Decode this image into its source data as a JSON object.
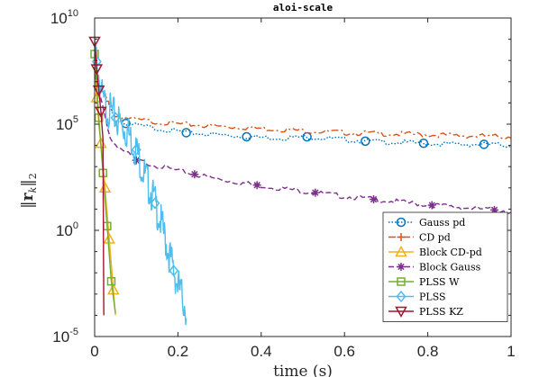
{
  "chart_data": {
    "type": "line",
    "title": "aloi-scale",
    "xlabel": "time (s)",
    "ylabel": "||r_k||_2",
    "xlim": [
      0,
      1
    ],
    "ylim_log10": [
      -5,
      10
    ],
    "yscale": "log",
    "grid": false,
    "legend_position": "lower-right",
    "x_ticks": [
      "0",
      "0.2",
      "0.4",
      "0.6",
      "0.8",
      "1"
    ],
    "y_ticks": [
      {
        "base": "10",
        "exp": "-5"
      },
      {
        "base": "10",
        "exp": "0"
      },
      {
        "base": "10",
        "exp": "5"
      },
      {
        "base": "10",
        "exp": "10"
      }
    ],
    "series": [
      {
        "name": "Gauss pd",
        "color": "#0072BD",
        "style": "dotted",
        "marker": "circle",
        "points": [
          [
            0.0,
            7.3
          ],
          [
            0.05,
            5.2
          ],
          [
            0.08,
            5.0
          ],
          [
            0.15,
            4.8
          ],
          [
            0.22,
            4.6
          ],
          [
            0.3,
            4.5
          ],
          [
            0.37,
            4.4
          ],
          [
            0.45,
            4.35
          ],
          [
            0.51,
            4.4
          ],
          [
            0.58,
            4.3
          ],
          [
            0.65,
            4.2
          ],
          [
            0.72,
            4.15
          ],
          [
            0.79,
            4.1
          ],
          [
            0.86,
            4.05
          ],
          [
            0.94,
            4.05
          ],
          [
            1.0,
            4.0
          ]
        ],
        "markers_x": [
          0.075,
          0.22,
          0.365,
          0.51,
          0.65,
          0.79,
          0.935
        ]
      },
      {
        "name": "CD pd",
        "color": "#D95319",
        "style": "dashdot",
        "marker": "plus",
        "points": [
          [
            0.0,
            7.2
          ],
          [
            0.05,
            5.4
          ],
          [
            0.1,
            5.2
          ],
          [
            0.2,
            5.0
          ],
          [
            0.3,
            4.9
          ],
          [
            0.4,
            4.8
          ],
          [
            0.5,
            4.7
          ],
          [
            0.6,
            4.6
          ],
          [
            0.7,
            4.55
          ],
          [
            0.8,
            4.5
          ],
          [
            0.9,
            4.45
          ],
          [
            1.0,
            4.4
          ]
        ],
        "markers_x": []
      },
      {
        "name": "Block CD-pd",
        "color": "#EDB120",
        "style": "solid",
        "marker": "triangle",
        "points": [
          [
            0.0,
            7.5
          ],
          [
            0.01,
            5.0
          ],
          [
            0.02,
            3.2
          ],
          [
            0.03,
            0.8
          ],
          [
            0.04,
            -1.6
          ],
          [
            0.05,
            -4.0
          ]
        ],
        "markers_x": [
          0.005,
          0.015,
          0.025,
          0.035,
          0.045
        ]
      },
      {
        "name": "Block Gauss",
        "color": "#7E2F8E",
        "style": "dashed",
        "marker": "asterisk",
        "points": [
          [
            0.0,
            7.3
          ],
          [
            0.04,
            4.2
          ],
          [
            0.1,
            3.3
          ],
          [
            0.2,
            2.8
          ],
          [
            0.3,
            2.4
          ],
          [
            0.4,
            2.1
          ],
          [
            0.5,
            1.85
          ],
          [
            0.6,
            1.6
          ],
          [
            0.7,
            1.4
          ],
          [
            0.8,
            1.2
          ],
          [
            0.9,
            1.05
          ],
          [
            1.0,
            0.9
          ]
        ],
        "markers_x": [
          0.1,
          0.24,
          0.39,
          0.53,
          0.67,
          0.81,
          0.96
        ]
      },
      {
        "name": "PLSS W",
        "color": "#77AC30",
        "style": "solid",
        "marker": "square",
        "points": [
          [
            0.0,
            8.3
          ],
          [
            0.01,
            5.3
          ],
          [
            0.02,
            2.7
          ],
          [
            0.03,
            0.2
          ],
          [
            0.04,
            -2.4
          ],
          [
            0.05,
            -3.9
          ]
        ],
        "markers_x": [
          0.0,
          0.01,
          0.02,
          0.03,
          0.04
        ]
      },
      {
        "name": "PLSS",
        "color": "#4DBEEE",
        "style": "solid",
        "marker": "diamond",
        "points": [
          [
            0.0,
            8.6
          ],
          [
            0.02,
            6.0
          ],
          [
            0.05,
            5.3
          ],
          [
            0.08,
            4.6
          ],
          [
            0.1,
            3.8
          ],
          [
            0.12,
            2.6
          ],
          [
            0.14,
            1.6
          ],
          [
            0.16,
            0.3
          ],
          [
            0.18,
            -1.2
          ],
          [
            0.2,
            -2.6
          ],
          [
            0.22,
            -3.7
          ]
        ],
        "markers_x": [
          0.005,
          0.05,
          0.1,
          0.145,
          0.19
        ]
      },
      {
        "name": "PLSS KZ",
        "color": "#A2142F",
        "style": "solid",
        "marker": "triangle-down",
        "points": [
          [
            0.0,
            8.9
          ],
          [
            0.005,
            7.6
          ],
          [
            0.01,
            6.6
          ],
          [
            0.015,
            5.6
          ],
          [
            0.02,
            4.3
          ],
          [
            0.022,
            -4.0
          ]
        ],
        "markers_x": [
          0.0,
          0.005,
          0.01,
          0.015
        ]
      }
    ]
  }
}
